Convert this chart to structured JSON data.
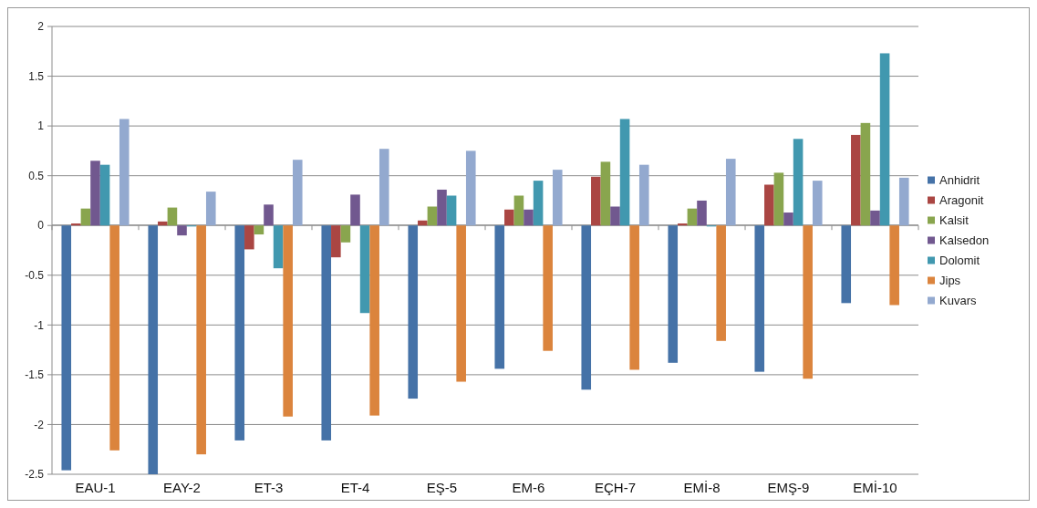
{
  "chart_data": {
    "type": "bar",
    "categories": [
      "EAU-1",
      "EAY-2",
      "ET-3",
      "ET-4",
      "EŞ-5",
      "EM-6",
      "EÇH-7",
      "EMİ-8",
      "EMŞ-9",
      "EMİ-10"
    ],
    "series": [
      {
        "name": "Anhidrit",
        "color": "#4572a7",
        "values": [
          -2.46,
          -2.5,
          -2.16,
          -2.16,
          -1.74,
          -1.44,
          -1.65,
          -1.38,
          -1.47,
          -0.78
        ]
      },
      {
        "name": "Aragonit",
        "color": "#aa4643",
        "values": [
          0.02,
          0.04,
          -0.24,
          -0.32,
          0.05,
          0.16,
          0.49,
          0.02,
          0.41,
          0.91
        ]
      },
      {
        "name": "Kalsit",
        "color": "#89a54e",
        "values": [
          0.17,
          0.18,
          -0.09,
          -0.17,
          0.19,
          0.3,
          0.64,
          0.17,
          0.53,
          1.03
        ]
      },
      {
        "name": "Kalsedon",
        "color": "#71588f",
        "values": [
          0.65,
          -0.1,
          0.21,
          0.31,
          0.36,
          0.16,
          0.19,
          0.25,
          0.13,
          0.15
        ]
      },
      {
        "name": "Dolomit",
        "color": "#4198af",
        "values": [
          0.61,
          -0.01,
          -0.43,
          -0.88,
          0.3,
          0.45,
          1.07,
          -0.01,
          0.87,
          1.73
        ]
      },
      {
        "name": "Jips",
        "color": "#db843d",
        "values": [
          -2.26,
          -2.3,
          -1.92,
          -1.91,
          -1.57,
          -1.26,
          -1.45,
          -1.16,
          -1.54,
          -0.8
        ]
      },
      {
        "name": "Kuvars",
        "color": "#93a9cf",
        "values": [
          1.07,
          0.34,
          0.66,
          0.77,
          0.75,
          0.56,
          0.61,
          0.67,
          0.45,
          0.48
        ]
      }
    ],
    "ylim": [
      -2.5,
      2
    ],
    "yticks": [
      -2.5,
      -2,
      -1.5,
      -1,
      -0.5,
      0,
      0.5,
      1,
      1.5,
      2
    ],
    "grid": "y",
    "legend": "right"
  }
}
